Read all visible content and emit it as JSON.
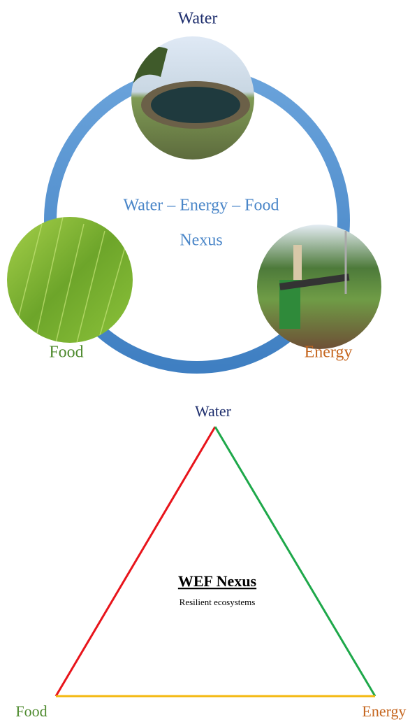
{
  "top_diagram": {
    "nodes": [
      {
        "label": "Water"
      },
      {
        "label": "Food"
      },
      {
        "label": "Energy"
      }
    ],
    "center_lines": [
      "Water – Energy – Food",
      "Nexus"
    ]
  },
  "bottom_diagram": {
    "nodes": [
      {
        "label": "Water"
      },
      {
        "label": "Food"
      },
      {
        "label": "Energy"
      }
    ],
    "title": "WEF Nexus",
    "subtitle": "Resilient ecosystems"
  }
}
